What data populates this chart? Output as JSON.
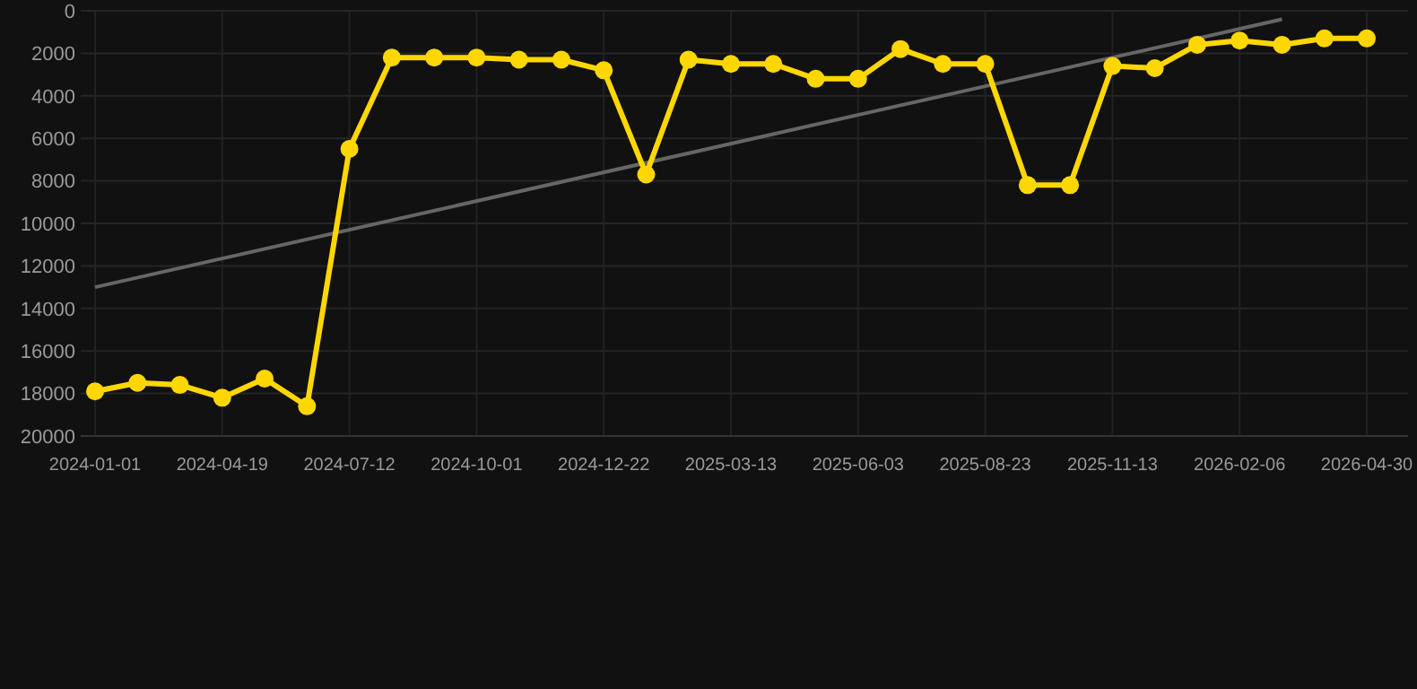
{
  "chart_data": {
    "type": "line",
    "categories": [
      "2024-01-01",
      null,
      null,
      "2024-04-19",
      null,
      null,
      "2024-07-12",
      null,
      null,
      "2024-10-01",
      null,
      null,
      "2024-12-22",
      null,
      null,
      "2025-03-13",
      null,
      null,
      "2025-06-03",
      null,
      null,
      "2025-08-23",
      null,
      null,
      "2025-11-13",
      null,
      null,
      "2026-02-06",
      null,
      null,
      "2026-04-30"
    ],
    "series": [
      {
        "color": "#ffd700",
        "marker": "circle",
        "values": [
          17900,
          17500,
          17600,
          18200,
          17300,
          18600,
          6500,
          2200,
          2200,
          2200,
          2300,
          2300,
          2800,
          7700,
          2300,
          2500,
          2500,
          3200,
          3200,
          1800,
          2500,
          2500,
          8200,
          8200,
          2600,
          2700,
          1600,
          1400,
          1600,
          1300,
          1300
        ]
      },
      {
        "color": "#666666",
        "marker": "none",
        "values": [
          13000,
          null,
          null,
          null,
          null,
          null,
          null,
          null,
          null,
          null,
          null,
          null,
          null,
          null,
          null,
          null,
          null,
          null,
          null,
          null,
          null,
          null,
          null,
          null,
          null,
          null,
          null,
          null,
          400,
          null,
          null
        ]
      }
    ],
    "ylim": [
      20000,
      0
    ],
    "yticks": [
      0,
      2000,
      4000,
      6000,
      8000,
      10000,
      12000,
      14000,
      16000,
      18000,
      20000
    ],
    "grid": true,
    "line_style": "solid"
  }
}
